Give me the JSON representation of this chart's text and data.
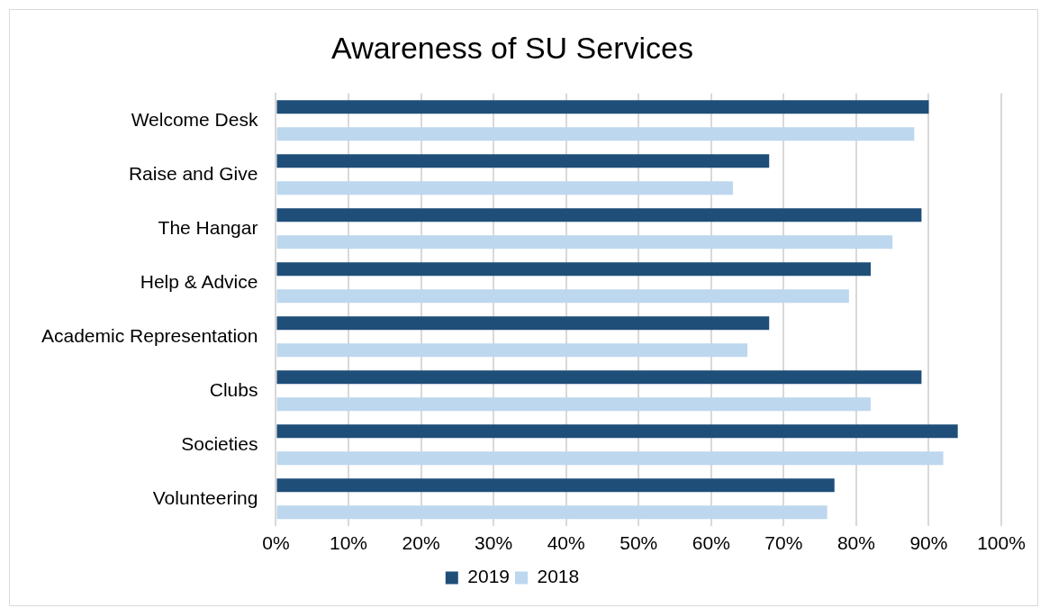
{
  "chart_data": {
    "type": "bar",
    "orientation": "horizontal",
    "title": "Awareness of SU Services",
    "categories": [
      "Welcome Desk",
      "Raise and Give",
      "The Hangar",
      "Help & Advice",
      "Academic Representation",
      "Clubs",
      "Societies",
      "Volunteering"
    ],
    "series": [
      {
        "name": "2019",
        "color": "#1f4e79",
        "values": [
          90,
          68,
          89,
          82,
          68,
          89,
          94,
          77
        ]
      },
      {
        "name": "2018",
        "color": "#bdd7ee",
        "values": [
          88,
          63,
          85,
          79,
          65,
          82,
          92,
          76
        ]
      }
    ],
    "xlim": [
      0,
      100
    ],
    "xticks": [
      {
        "value": 0,
        "label": "0%"
      },
      {
        "value": 10,
        "label": "10%"
      },
      {
        "value": 20,
        "label": "20%"
      },
      {
        "value": 30,
        "label": "30%"
      },
      {
        "value": 40,
        "label": "40%"
      },
      {
        "value": 50,
        "label": "50%"
      },
      {
        "value": 60,
        "label": "60%"
      },
      {
        "value": 70,
        "label": "70%"
      },
      {
        "value": 80,
        "label": "80%"
      },
      {
        "value": 90,
        "label": "90%"
      },
      {
        "value": 100,
        "label": "100%"
      }
    ],
    "grid": "x",
    "legend": "bottom"
  }
}
